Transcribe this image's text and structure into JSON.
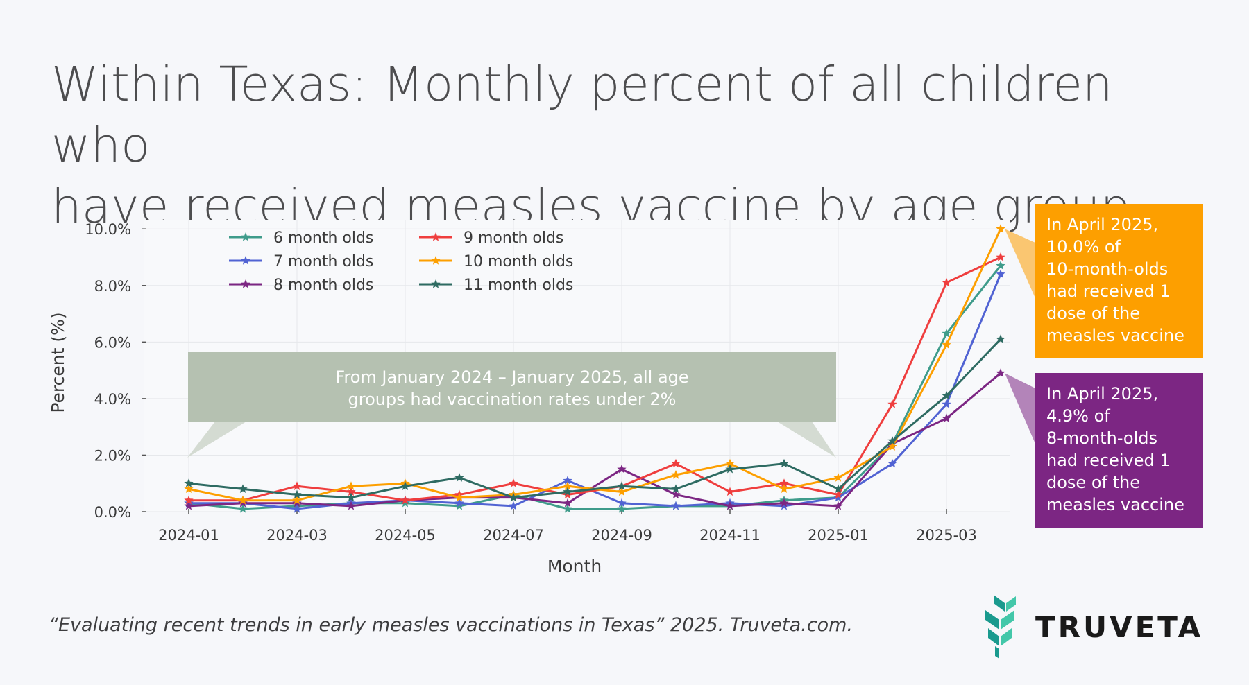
{
  "title_line1": "Within Texas: Monthly percent of all children who",
  "title_line2": "have received measles vaccine by age group",
  "footer": "“Evaluating recent trends in early measles vaccinations in Texas” 2025. Truveta.com.",
  "logo_text": "TRUVETA",
  "logo_colors": {
    "dark": "#1a9a8e",
    "light": "#43c7a9"
  },
  "callouts": {
    "orange": {
      "text": "In April 2025,\n10.0% of\n10-month-olds\nhad received 1\ndose of the\nmeasles vaccine",
      "color": "#fd9f00"
    },
    "purple": {
      "text": "In April 2025,\n4.9% of\n8-month-olds\nhad received 1\ndose of the\nmeasles vaccine",
      "color": "#7c2683"
    }
  },
  "chart_data": {
    "type": "line",
    "xlabel": "Month",
    "ylabel": "Percent (%)",
    "ylim": [
      0,
      10.3
    ],
    "yticks": [
      0,
      2,
      4,
      6,
      8,
      10
    ],
    "ytick_labels": [
      "0.0%",
      "2.0%",
      "4.0%",
      "6.0%",
      "8.0%",
      "10.0%"
    ],
    "xtick_labels": [
      "2024-01",
      "2024-03",
      "2024-05",
      "2024-07",
      "2024-09",
      "2024-11",
      "2025-01",
      "2025-03"
    ],
    "xtick_indices": [
      0,
      2,
      4,
      6,
      8,
      10,
      12,
      14
    ],
    "x": [
      "2024-01",
      "2024-02",
      "2024-03",
      "2024-04",
      "2024-05",
      "2024-06",
      "2024-07",
      "2024-08",
      "2024-09",
      "2024-10",
      "2024-11",
      "2024-12",
      "2025-01",
      "2025-02",
      "2025-03",
      "2025-04"
    ],
    "grid": true,
    "legend_position": "top-left",
    "series": [
      {
        "name": "6 month olds",
        "color": "#3f9c8b",
        "values": [
          0.3,
          0.1,
          0.2,
          0.3,
          0.3,
          0.2,
          0.6,
          0.1,
          0.1,
          0.2,
          0.2,
          0.4,
          0.5,
          2.4,
          6.3,
          8.7
        ]
      },
      {
        "name": "7 month olds",
        "color": "#5163d3",
        "values": [
          0.3,
          0.3,
          0.1,
          0.3,
          0.4,
          0.3,
          0.2,
          1.1,
          0.3,
          0.2,
          0.3,
          0.2,
          0.5,
          1.7,
          3.8,
          8.4
        ]
      },
      {
        "name": "8 month olds",
        "color": "#7c2683",
        "values": [
          0.2,
          0.3,
          0.3,
          0.2,
          0.4,
          0.5,
          0.5,
          0.3,
          1.5,
          0.6,
          0.2,
          0.3,
          0.2,
          2.4,
          3.3,
          4.9
        ]
      },
      {
        "name": "9 month olds",
        "color": "#ef3e3e",
        "values": [
          0.4,
          0.4,
          0.9,
          0.7,
          0.4,
          0.6,
          1.0,
          0.6,
          0.9,
          1.7,
          0.7,
          1.0,
          0.6,
          3.8,
          8.1,
          9.0
        ]
      },
      {
        "name": "10 month olds",
        "color": "#fd9f00",
        "values": [
          0.8,
          0.4,
          0.4,
          0.9,
          1.0,
          0.5,
          0.6,
          0.9,
          0.7,
          1.3,
          1.7,
          0.8,
          1.2,
          2.3,
          5.9,
          10.0
        ]
      },
      {
        "name": "11 month olds",
        "color": "#2e6b62",
        "values": [
          1.0,
          0.8,
          0.6,
          0.5,
          0.9,
          1.2,
          0.5,
          0.7,
          0.9,
          0.8,
          1.5,
          1.7,
          0.8,
          2.5,
          4.1,
          6.1
        ]
      }
    ],
    "annotation": {
      "text": "From January 2024 – January 2025, all age groups had vaccination rates under 2%",
      "color": "#b5c1b1"
    }
  }
}
